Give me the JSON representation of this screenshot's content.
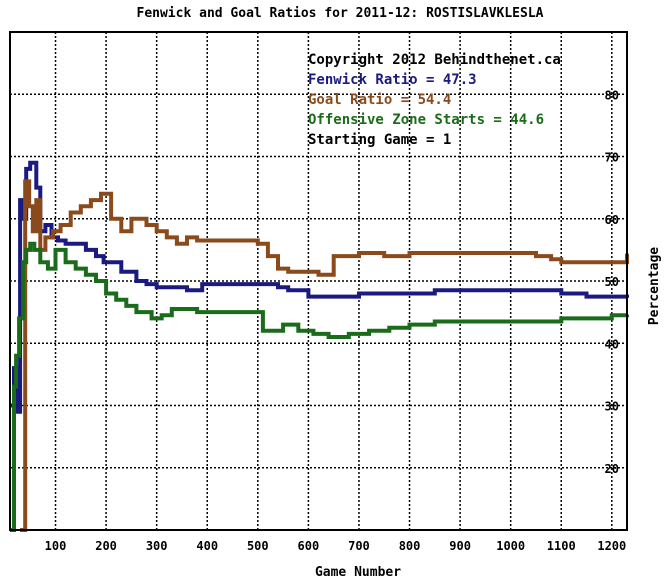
{
  "chart_data": {
    "type": "line",
    "title": "Fenwick and Goal Ratios for 2011-12: ROSTISLAVKLESLA",
    "xlabel": "Game Number",
    "ylabel": "Percentage",
    "xlim": [
      10,
      1230
    ],
    "ylim": [
      10,
      90
    ],
    "x_ticks": [
      100,
      200,
      300,
      400,
      500,
      600,
      700,
      800,
      900,
      1000,
      1100,
      1200
    ],
    "y_ticks": [
      20,
      30,
      40,
      50,
      60,
      70,
      80
    ],
    "grid": true,
    "annotations": [
      {
        "text": "Copyright 2012 Behindthenet.ca",
        "color": "#000000"
      },
      {
        "text": "Fenwick Ratio = 47.3",
        "color": "#1a1a80"
      },
      {
        "text": "Goal Ratio = 54.4",
        "color": "#8b4a1c"
      },
      {
        "text": "Offensive Zone Starts = 44.6",
        "color": "#1a6b1a"
      },
      {
        "text": "Starting Game = 1",
        "color": "#000000"
      }
    ],
    "series": [
      {
        "color": "#1a1a80",
        "x": [
          10,
          18,
          22,
          30,
          35,
          42,
          50,
          55,
          62,
          70,
          80,
          92,
          105,
          120,
          140,
          160,
          180,
          195,
          210,
          230,
          260,
          280,
          300,
          330,
          360,
          390,
          430,
          470,
          500,
          540,
          560,
          600,
          650,
          700,
          750,
          800,
          850,
          900,
          950,
          1000,
          1050,
          1100,
          1150,
          1200,
          1230
        ],
        "y": [
          30,
          36,
          29,
          63,
          60,
          68,
          69,
          69,
          65,
          58,
          59,
          57,
          56.5,
          56,
          56,
          55,
          54,
          53,
          53,
          51.5,
          50,
          49.5,
          49,
          49,
          48.5,
          49.5,
          49.5,
          49.5,
          49.5,
          49,
          48.5,
          47.5,
          47.5,
          48,
          48,
          48,
          48.5,
          48.5,
          48.5,
          48.5,
          48.5,
          48,
          47.5,
          47.5,
          47.3
        ]
      },
      {
        "color": "#8b4a1c",
        "x": [
          30,
          40,
          48,
          55,
          62,
          70,
          80,
          95,
          110,
          130,
          150,
          170,
          190,
          210,
          230,
          250,
          280,
          300,
          320,
          340,
          360,
          380,
          420,
          460,
          500,
          520,
          540,
          560,
          590,
          620,
          650,
          680,
          700,
          750,
          800,
          850,
          900,
          950,
          1000,
          1050,
          1080,
          1100,
          1150,
          1200,
          1230
        ],
        "y": [
          10,
          66,
          62,
          58,
          63,
          55,
          57,
          58,
          59,
          61,
          62,
          63,
          64,
          60,
          58,
          60,
          59,
          58,
          57,
          56,
          57,
          56.5,
          56.5,
          56.5,
          56,
          54,
          52,
          51.5,
          51.5,
          51,
          54,
          54,
          54.5,
          54,
          54.5,
          54.5,
          54.5,
          54.5,
          54.5,
          54,
          53.5,
          53,
          53,
          53,
          54.4
        ]
      },
      {
        "color": "#1a6b1a",
        "x": [
          10,
          18,
          22,
          28,
          36,
          42,
          50,
          58,
          70,
          85,
          100,
          120,
          140,
          160,
          180,
          200,
          220,
          240,
          260,
          290,
          310,
          330,
          350,
          380,
          420,
          460,
          490,
          510,
          550,
          580,
          610,
          640,
          680,
          720,
          760,
          800,
          850,
          900,
          950,
          1000,
          1050,
          1100,
          1150,
          1200,
          1230
        ],
        "y": [
          10,
          33,
          38,
          44,
          53,
          55,
          56,
          55,
          53,
          52,
          55,
          53,
          52,
          51,
          50,
          48,
          47,
          46,
          45,
          44,
          44.5,
          45.5,
          45.5,
          45,
          45,
          45,
          45,
          42,
          43,
          42,
          41.5,
          41,
          41.5,
          42,
          42.5,
          43,
          43.5,
          43.5,
          43.5,
          43.5,
          43.5,
          44,
          44,
          44.5,
          44.6
        ]
      }
    ]
  }
}
